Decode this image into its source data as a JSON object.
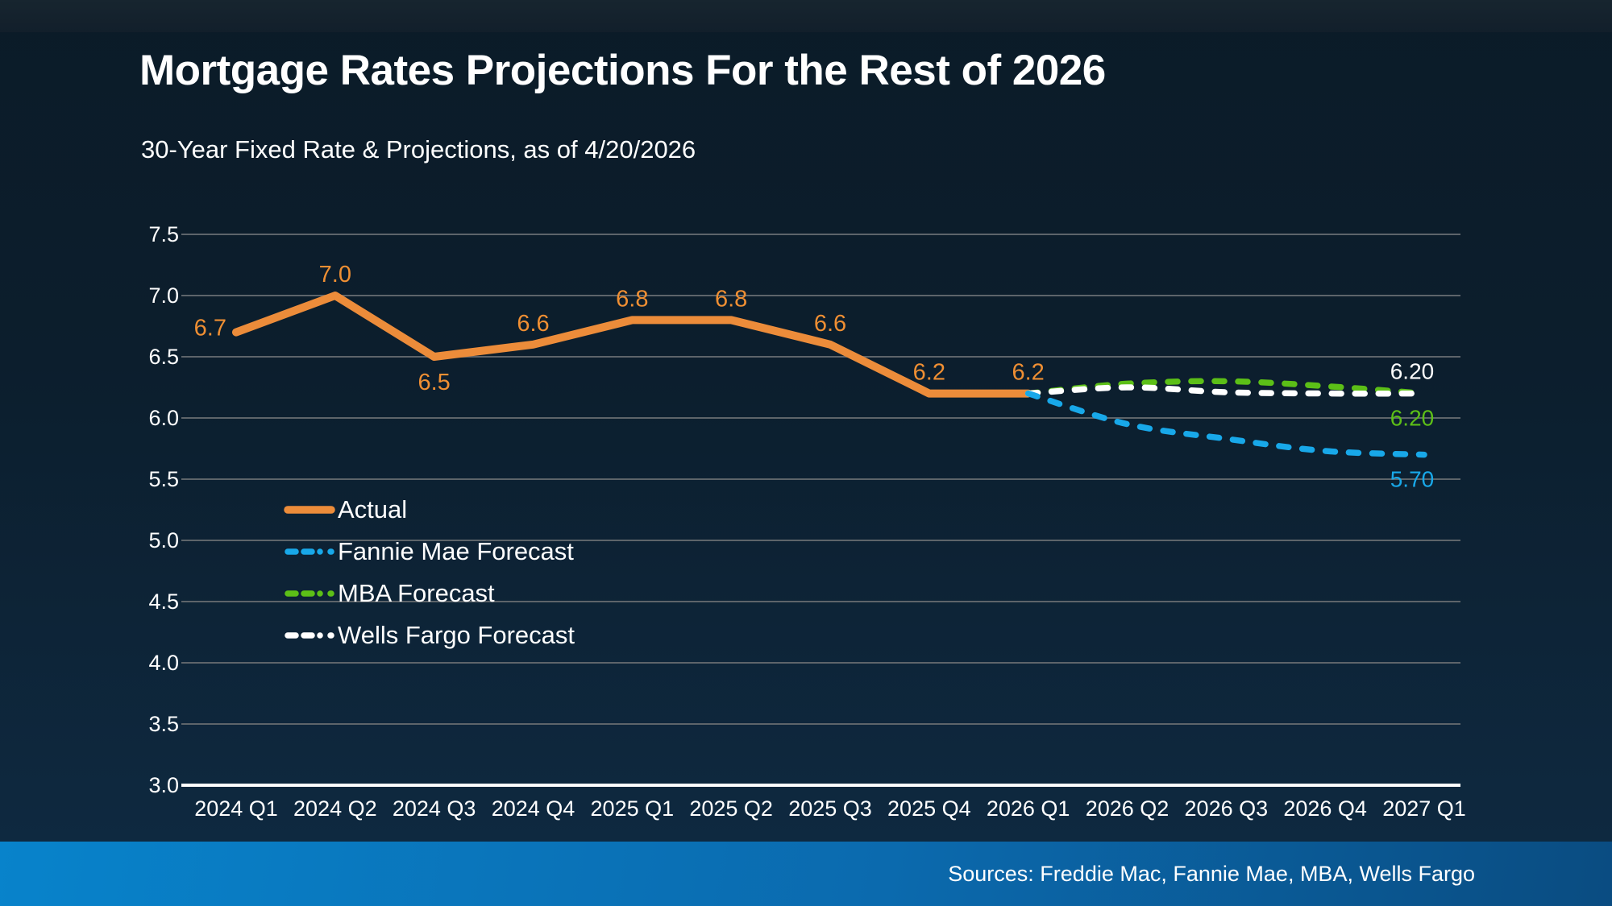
{
  "header": {
    "title": "Mortgage Rates Projections For the Rest of 2026",
    "subtitle": "30-Year Fixed Rate & Projections, as of 4/20/2026"
  },
  "footer": {
    "sources": "Sources: Freddie Mac, Fannie Mae, MBA, Wells Fargo"
  },
  "colors": {
    "actual": "#EC8C3A",
    "fannie_mae": "#18A8E9",
    "mba": "#5CBF17",
    "wells_fargo": "#FFFFFF",
    "gridline": "#5d646a",
    "axis_line": "#FFFFFF",
    "footer_left": "#0883cb",
    "footer_right": "#0a4c81"
  },
  "chart_data": {
    "type": "line",
    "title": "Mortgage Rates Projections For the Rest of 2026",
    "subtitle": "30-Year Fixed Rate & Projections, as of 4/20/2026",
    "categories": [
      "2024 Q1",
      "2024 Q2",
      "2024 Q3",
      "2024 Q4",
      "2025 Q1",
      "2025 Q2",
      "2025 Q3",
      "2025 Q4",
      "2026 Q1",
      "2026 Q2",
      "2026 Q3",
      "2026 Q4",
      "2027 Q1"
    ],
    "ylim": [
      3.0,
      7.5
    ],
    "ytick_step": 0.5,
    "ytick_labels": [
      "7.5",
      "7.0",
      "6.5",
      "6.0",
      "5.5",
      "5.0",
      "4.5",
      "4.0",
      "3.5",
      "3.0"
    ],
    "grid": true,
    "legend_position": "inside-bottom-left",
    "series": [
      {
        "name": "Actual",
        "color": "#EC8C3A",
        "style": "solid",
        "start_index": 0,
        "values": [
          6.7,
          7.0,
          6.5,
          6.6,
          6.8,
          6.8,
          6.6,
          6.2,
          6.2
        ],
        "point_labels": [
          "6.7",
          "7.0",
          "6.5",
          "6.6",
          "6.8",
          "6.8",
          "6.6",
          "6.2",
          "6.2"
        ],
        "label_sides": [
          "left",
          "above",
          "below",
          "above",
          "above",
          "above",
          "above",
          "above",
          "above"
        ]
      },
      {
        "name": "Fannie Mae Forecast",
        "color": "#18A8E9",
        "style": "dashed",
        "start_index": 8,
        "values": [
          6.2,
          5.95,
          5.83,
          5.73,
          5.7
        ],
        "end_label": "5.70",
        "end_label_side": "below"
      },
      {
        "name": "MBA Forecast",
        "color": "#5CBF17",
        "style": "dashed",
        "start_index": 8,
        "values": [
          6.2,
          6.28,
          6.3,
          6.26,
          6.2
        ],
        "end_label": "6.20",
        "end_label_side": "below"
      },
      {
        "name": "Wells Fargo Forecast",
        "color": "#FFFFFF",
        "style": "dashed",
        "start_index": 8,
        "values": [
          6.2,
          6.25,
          6.21,
          6.2,
          6.2
        ],
        "end_label": "6.20",
        "end_label_side": "above"
      }
    ]
  }
}
